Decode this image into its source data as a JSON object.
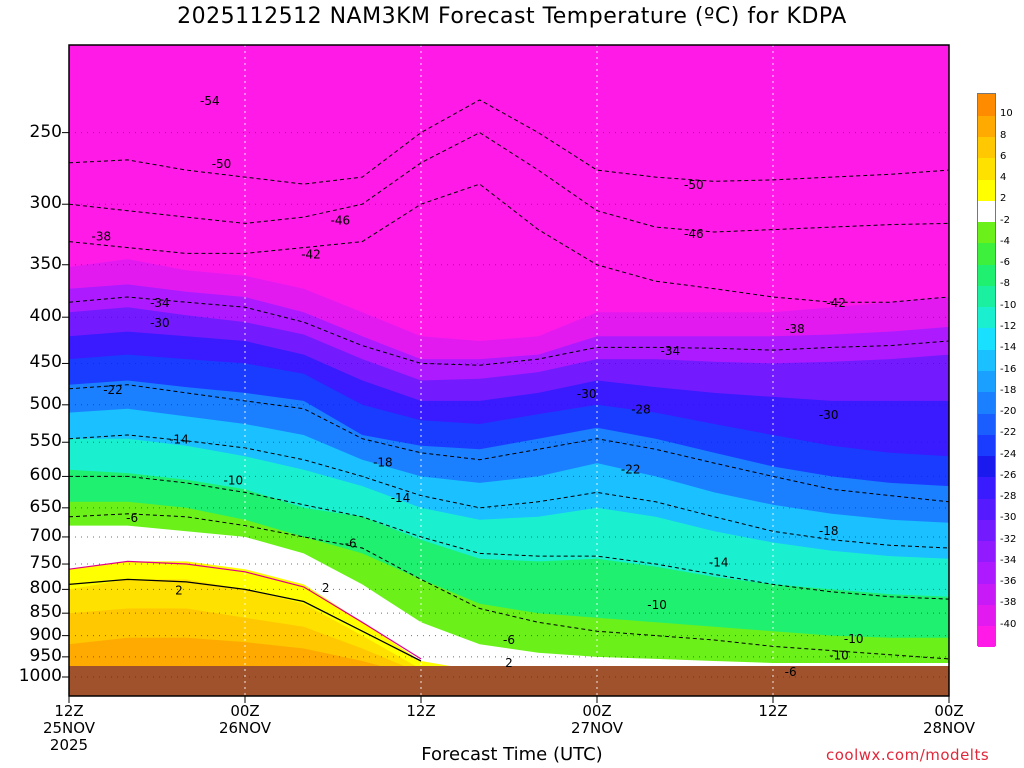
{
  "chart_data": {
    "type": "heatmap",
    "title": "2025112512 NAM3KM Forecast Temperature (ºC) for KDPA",
    "xlabel": "Forecast Time (UTC)",
    "ylabel": "",
    "credit": "coolwx.com/modelts",
    "y_axis": {
      "unit": "hPa",
      "scale": "log",
      "inverted": true,
      "range": [
        1000,
        200
      ],
      "ticks": [
        250,
        300,
        350,
        400,
        450,
        500,
        550,
        600,
        650,
        700,
        750,
        800,
        850,
        900,
        950,
        1000
      ]
    },
    "x_axis": {
      "range_hours": [
        0,
        60
      ],
      "ticks": [
        {
          "hour": 0,
          "line1": "12Z",
          "line2": "25NOV",
          "line3": "2025"
        },
        {
          "hour": 12,
          "line1": "00Z",
          "line2": "26NOV",
          "line3": ""
        },
        {
          "hour": 24,
          "line1": "12Z",
          "line2": "",
          "line3": ""
        },
        {
          "hour": 36,
          "line1": "00Z",
          "line2": "27NOV",
          "line3": ""
        },
        {
          "hour": 48,
          "line1": "12Z",
          "line2": "",
          "line3": ""
        },
        {
          "hour": 60,
          "line1": "00Z",
          "line2": "28NOV",
          "line3": ""
        }
      ]
    },
    "colorbar": {
      "levels": [
        -42,
        -40,
        -38,
        -36,
        -34,
        -32,
        -30,
        -28,
        -26,
        -24,
        -22,
        -20,
        -18,
        -16,
        -14,
        -12,
        -10,
        -8,
        -6,
        -4,
        -2,
        2,
        4,
        6,
        8,
        10,
        12
      ],
      "labels": [
        "-40",
        "-38",
        "-36",
        "-34",
        "-32",
        "-30",
        "-28",
        "-26",
        "-24",
        "-22",
        "-20",
        "-18",
        "-16",
        "-14",
        "-12",
        "-10",
        "-8",
        "-6",
        "-4",
        "-2",
        "2",
        "4",
        "6",
        "8",
        "10"
      ],
      "colors": [
        "#ff1ae8",
        "#e31af0",
        "#c71af7",
        "#ad1aff",
        "#921aff",
        "#741aff",
        "#561aff",
        "#3a1aff",
        "#1a1aee",
        "#1a3cff",
        "#1a5eff",
        "#1a80ff",
        "#1aa0ff",
        "#1ac0ff",
        "#1ae0ff",
        "#1af0d0",
        "#1af0a0",
        "#1ff070",
        "#3cf03c",
        "#6cf01a",
        "#ffffff",
        "#ffff00",
        "#ffe100",
        "#ffc800",
        "#ffaa00",
        "#ff8c00"
      ]
    },
    "contours": [
      {
        "value": -54,
        "label_x": 9.6,
        "label_p": 230
      },
      {
        "value": -50,
        "label_x": 10.4,
        "label_p": 270
      },
      {
        "value": -46,
        "label_x": 18.5,
        "label_p": 312
      },
      {
        "value": -42,
        "label_x": 16.5,
        "label_p": 340
      },
      {
        "value": -38,
        "label_x": 2.2,
        "label_p": 325
      },
      {
        "value": -34,
        "label_x": 6.2,
        "label_p": 385
      },
      {
        "value": -30,
        "label_x": 6.2,
        "label_p": 405
      },
      {
        "value": -22,
        "label_x": 3.0,
        "label_p": 480
      },
      {
        "value": -14,
        "label_x": 7.5,
        "label_p": 545
      },
      {
        "value": -10,
        "label_x": 11.2,
        "label_p": 605
      },
      {
        "value": -6,
        "label_x": 4.3,
        "label_p": 665
      },
      {
        "value": -18,
        "label_x": 21.4,
        "label_p": 578
      },
      {
        "value": -14,
        "label_x": 22.6,
        "label_p": 632
      },
      {
        "value": -6,
        "label_x": 19.2,
        "label_p": 710
      },
      {
        "value": 2,
        "label_x": 7.5,
        "label_p": 800
      },
      {
        "value": 2,
        "label_x": 17.5,
        "label_p": 795
      },
      {
        "value": -50,
        "label_x": 42.6,
        "label_p": 285
      },
      {
        "value": -46,
        "label_x": 42.6,
        "label_p": 323
      },
      {
        "value": -42,
        "label_x": 52.3,
        "label_p": 385
      },
      {
        "value": -38,
        "label_x": 49.5,
        "label_p": 411
      },
      {
        "value": -34,
        "label_x": 41.0,
        "label_p": 435
      },
      {
        "value": -30,
        "label_x": 35.3,
        "label_p": 485
      },
      {
        "value": -28,
        "label_x": 39.0,
        "label_p": 505
      },
      {
        "value": -30,
        "label_x": 51.8,
        "label_p": 512
      },
      {
        "value": -22,
        "label_x": 38.3,
        "label_p": 588
      },
      {
        "value": -18,
        "label_x": 51.8,
        "label_p": 688
      },
      {
        "value": -14,
        "label_x": 44.3,
        "label_p": 745
      },
      {
        "value": -10,
        "label_x": 40.1,
        "label_p": 830
      },
      {
        "value": -10,
        "label_x": 53.5,
        "label_p": 905
      },
      {
        "value": -10,
        "label_x": 52.5,
        "label_p": 944
      },
      {
        "value": -6,
        "label_x": 30.0,
        "label_p": 908
      },
      {
        "value": -6,
        "label_x": 49.2,
        "label_p": 985
      },
      {
        "value": 2,
        "label_x": 30.0,
        "label_p": 962
      }
    ]
  }
}
